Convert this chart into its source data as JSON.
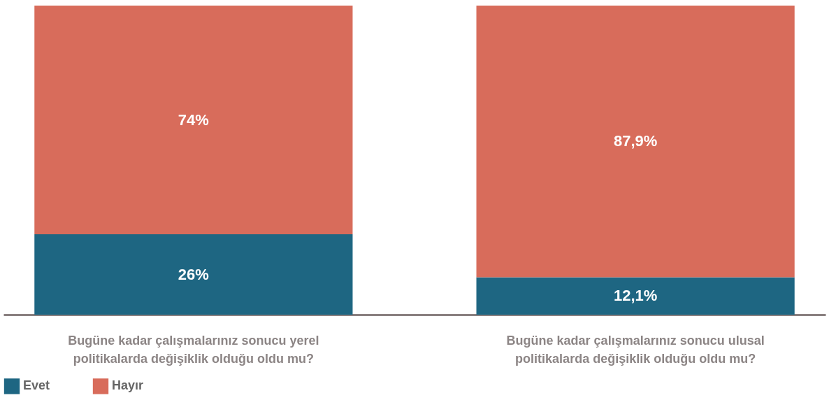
{
  "chart_data": {
    "type": "bar",
    "stacked": true,
    "categories": [
      "Bugüne kadar çalışmalarınız sonucu yerel politikalarda değişiklik olduğu oldu mu?",
      "Bugüne kadar çalışmalarınız sonucu ulusal politikalarda değişiklik olduğu oldu mu?"
    ],
    "series": [
      {
        "name": "Evet",
        "color": "#1e6682",
        "values": [
          26,
          12.1
        ],
        "value_labels": [
          "26%",
          "12,1%"
        ]
      },
      {
        "name": "Hayır",
        "color": "#d86c5b",
        "values": [
          74,
          87.9
        ],
        "value_labels": [
          "74%",
          "87,9%"
        ]
      }
    ],
    "legend": "bottom",
    "grid": false
  }
}
